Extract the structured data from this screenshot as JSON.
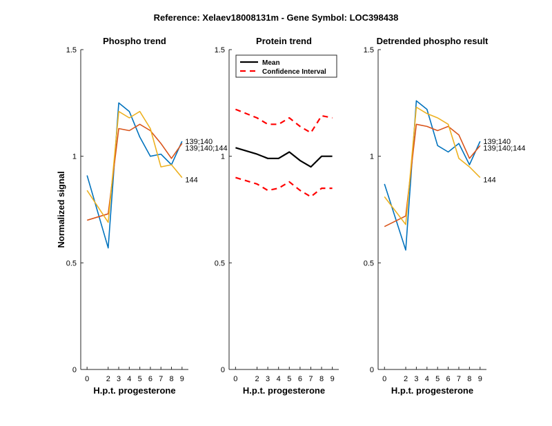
{
  "figure": {
    "title": "Reference:  Xelaev18008131m - Gene Symbol:  LOC398438"
  },
  "chart_data": [
    {
      "type": "line",
      "title": "Phospho trend",
      "xlabel": "H.p.t. progesterone",
      "ylabel": "Normalized signal",
      "x": [
        0,
        2,
        3,
        4,
        5,
        6,
        7,
        8,
        9
      ],
      "xlim": [
        -0.6,
        9.6
      ],
      "ylim": [
        0,
        1.5
      ],
      "yticks": [
        0,
        0.5,
        1,
        1.5
      ],
      "ytick_labels": [
        "0",
        "0.5",
        "1",
        "1.5"
      ],
      "grid": false,
      "series": [
        {
          "values": [
            0.91,
            0.57,
            1.25,
            1.21,
            1.09,
            1.0,
            1.01,
            0.96,
            1.07
          ],
          "color": "#0072BD"
        },
        {
          "values": [
            0.7,
            0.73,
            1.13,
            1.12,
            1.15,
            1.12,
            1.06,
            0.99,
            1.06
          ],
          "color": "#D95319"
        },
        {
          "values": [
            0.84,
            0.69,
            1.21,
            1.18,
            1.21,
            1.13,
            0.95,
            0.96,
            0.9
          ],
          "color": "#EDB120"
        }
      ],
      "annotations": [
        {
          "text": "139;140",
          "x": 9.3,
          "y": 1.07
        },
        {
          "text": "139;140;144",
          "x": 9.3,
          "y": 1.04
        },
        {
          "text": "144",
          "x": 9.3,
          "y": 0.89
        }
      ]
    },
    {
      "type": "line",
      "title": "Protein trend",
      "xlabel": "H.p.t. progesterone",
      "x": [
        0,
        2,
        3,
        4,
        5,
        6,
        7,
        8,
        9
      ],
      "xlim": [
        -0.6,
        9.6
      ],
      "ylim": [
        0,
        1.5
      ],
      "yticks": [
        0,
        0.5,
        1,
        1.5
      ],
      "ytick_labels": [
        "0",
        "0.5",
        "1",
        "1.5"
      ],
      "grid": false,
      "legend": {
        "position": "top-left",
        "entries": [
          "Mean",
          "Confidence Interval"
        ]
      },
      "series": [
        {
          "name": "Mean",
          "values": [
            1.04,
            1.01,
            0.99,
            0.99,
            1.02,
            0.98,
            0.95,
            1.0,
            1.0
          ],
          "color": "#000000",
          "style": "solid"
        },
        {
          "name": "Confidence Interval",
          "values": [
            1.22,
            1.18,
            1.15,
            1.15,
            1.18,
            1.14,
            1.11,
            1.19,
            1.18
          ],
          "color": "#FF0000",
          "style": "dashed"
        },
        {
          "values": [
            0.9,
            0.87,
            0.84,
            0.85,
            0.88,
            0.84,
            0.81,
            0.85,
            0.85
          ],
          "color": "#FF0000",
          "style": "dashed"
        }
      ]
    },
    {
      "type": "line",
      "title": "Detrended phospho result",
      "xlabel": "H.p.t. progesterone",
      "x": [
        0,
        2,
        3,
        4,
        5,
        6,
        7,
        8,
        9
      ],
      "xlim": [
        -0.6,
        9.6
      ],
      "ylim": [
        0,
        1.5
      ],
      "yticks": [
        0,
        0.5,
        1,
        1.5
      ],
      "ytick_labels": [
        "0",
        "0.5",
        "1",
        "1.5"
      ],
      "grid": false,
      "series": [
        {
          "values": [
            0.87,
            0.56,
            1.26,
            1.22,
            1.05,
            1.02,
            1.06,
            0.96,
            1.07
          ],
          "color": "#0072BD"
        },
        {
          "values": [
            0.67,
            0.72,
            1.15,
            1.14,
            1.12,
            1.14,
            1.1,
            0.99,
            1.05
          ],
          "color": "#D95319"
        },
        {
          "values": [
            0.81,
            0.68,
            1.23,
            1.2,
            1.18,
            1.15,
            0.99,
            0.95,
            0.9
          ],
          "color": "#EDB120"
        }
      ],
      "annotations": [
        {
          "text": "139;140",
          "x": 9.3,
          "y": 1.07
        },
        {
          "text": "139;140;144",
          "x": 9.3,
          "y": 1.04
        },
        {
          "text": "144",
          "x": 9.3,
          "y": 0.89
        }
      ]
    }
  ]
}
